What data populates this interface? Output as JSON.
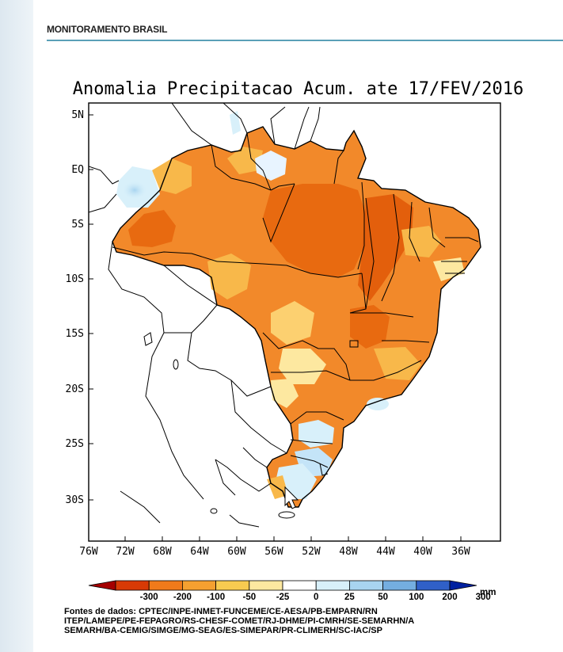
{
  "section_title": "MONITORAMENTO BRASIL",
  "map_title": "Anomalia Precipitacao Acum. ate 17/FEV/2016",
  "lat_labels": [
    "5N",
    "EQ",
    "5S",
    "10S",
    "15S",
    "20S",
    "25S",
    "30S"
  ],
  "lon_labels": [
    "76W",
    "72W",
    "68W",
    "64W",
    "60W",
    "56W",
    "52W",
    "48W",
    "44W",
    "40W",
    "36W"
  ],
  "colorbar": {
    "labels": [
      "-300",
      "-200",
      "-100",
      "-50",
      "-25",
      "0",
      "25",
      "50",
      "100",
      "200",
      "300"
    ],
    "unit": "mm",
    "colors": [
      "#a50000",
      "#d83a05",
      "#f07a1a",
      "#f5a030",
      "#f8cb50",
      "#fde8a0",
      "#ffffff",
      "#d8f0fa",
      "#a8d4f0",
      "#74aee0",
      "#3060c8",
      "#0020a0"
    ]
  },
  "sources": {
    "line1": "Fontes de dados: CPTEC/INPE-INMET-FUNCEME/CE-AESA/PB-EMPARN/RN",
    "line2": "ITEP/LAMEPE/PE-FEPAGRO/RS-CHESF-COMET/RJ-DHME/PI-CMRH/SE-SEMARHN/A",
    "line3": "SEMARH/BA-CEMIG/SIMGE/MG-SEAG/ES-SIMEPAR/PR-CLIMERH/SC-IAC/SP"
  }
}
